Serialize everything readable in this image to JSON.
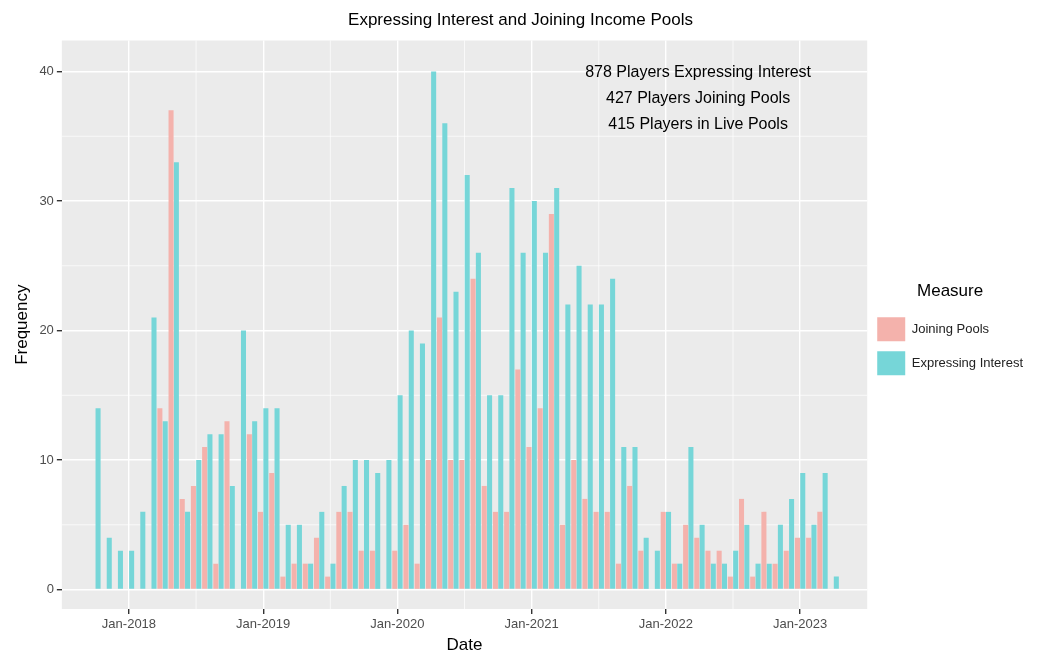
{
  "chart_data": {
    "type": "bar",
    "title": "Expressing Interest and Joining Income Pools",
    "xlabel": "Date",
    "ylabel": "Frequency",
    "legend_title": "Measure",
    "legend": "right",
    "grid": true,
    "x": [
      "2017-10",
      "2017-11",
      "2017-12",
      "2018-01",
      "2018-02",
      "2018-03",
      "2018-04",
      "2018-05",
      "2018-06",
      "2018-07",
      "2018-08",
      "2018-09",
      "2018-10",
      "2018-11",
      "2018-12",
      "2019-01",
      "2019-02",
      "2019-03",
      "2019-04",
      "2019-05",
      "2019-06",
      "2019-07",
      "2019-08",
      "2019-09",
      "2019-10",
      "2019-11",
      "2019-12",
      "2020-01",
      "2020-02",
      "2020-03",
      "2020-04",
      "2020-05",
      "2020-06",
      "2020-07",
      "2020-08",
      "2020-09",
      "2020-10",
      "2020-11",
      "2020-12",
      "2021-01",
      "2021-02",
      "2021-03",
      "2021-04",
      "2021-05",
      "2021-06",
      "2021-07",
      "2021-08",
      "2021-09",
      "2021-10",
      "2021-11",
      "2021-12",
      "2022-01",
      "2022-02",
      "2022-03",
      "2022-04",
      "2022-05",
      "2022-06",
      "2022-07",
      "2022-08",
      "2022-09",
      "2022-10",
      "2022-11",
      "2022-12",
      "2023-01",
      "2023-02",
      "2023-03",
      "2023-04"
    ],
    "series": [
      {
        "name": "Joining Pools",
        "color": "#f4b2ac",
        "values": [
          null,
          null,
          null,
          null,
          null,
          null,
          14,
          37,
          7,
          8,
          11,
          2,
          13,
          null,
          12,
          6,
          9,
          1,
          2,
          2,
          4,
          1,
          6,
          6,
          3,
          3,
          null,
          3,
          5,
          2,
          10,
          21,
          10,
          10,
          24,
          8,
          6,
          6,
          17,
          11,
          14,
          29,
          5,
          10,
          7,
          6,
          6,
          2,
          8,
          3,
          null,
          6,
          2,
          5,
          4,
          3,
          3,
          1,
          7,
          1,
          6,
          2,
          3,
          4,
          4,
          6,
          null
        ]
      },
      {
        "name": "Expressing Interest",
        "color": "#76d6d8",
        "values": [
          14,
          4,
          3,
          3,
          6,
          21,
          13,
          33,
          6,
          10,
          12,
          12,
          8,
          20,
          13,
          14,
          14,
          5,
          5,
          2,
          6,
          2,
          8,
          10,
          10,
          9,
          10,
          15,
          20,
          19,
          40,
          36,
          23,
          32,
          26,
          15,
          15,
          31,
          26,
          30,
          26,
          31,
          22,
          25,
          22,
          22,
          24,
          11,
          11,
          4,
          3,
          6,
          2,
          11,
          5,
          2,
          2,
          3,
          5,
          2,
          2,
          5,
          7,
          9,
          5,
          9,
          1
        ]
      }
    ],
    "xlim": [
      "2017-07",
      "2023-07"
    ],
    "xticks": [
      {
        "value": "2018-01",
        "label": "Jan-2018"
      },
      {
        "value": "2019-01",
        "label": "Jan-2019"
      },
      {
        "value": "2020-01",
        "label": "Jan-2020"
      },
      {
        "value": "2021-01",
        "label": "Jan-2021"
      },
      {
        "value": "2022-01",
        "label": "Jan-2022"
      },
      {
        "value": "2023-01",
        "label": "Jan-2023"
      }
    ],
    "ylim": [
      -1.5,
      42.4
    ],
    "yticks": [
      0,
      10,
      20,
      30,
      40
    ],
    "annotations": [
      "878 Players Expressing Interest",
      "427 Players Joining Pools",
      "415 Players in Live Pools"
    ]
  }
}
